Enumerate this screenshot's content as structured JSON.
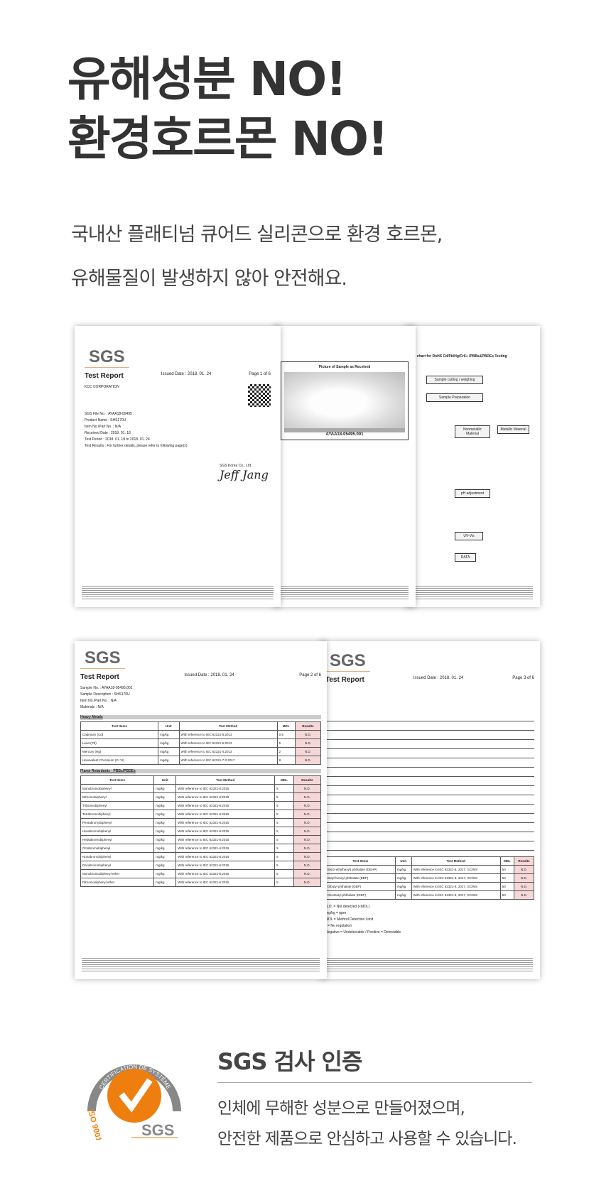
{
  "headline": {
    "line1": "유해성분 NO!",
    "line2": "환경호르몬 NO!"
  },
  "intro": {
    "line1": "국내산 플래티넘 큐어드 실리콘으로 환경 호르몬,",
    "line2": "유해물질이 발생하지 않아 안전해요."
  },
  "doc1": {
    "logo": "SGS",
    "title": "Test Report",
    "issued": "Issued Date : 2018. 01. 24",
    "page": "Page 1 of 6",
    "company": "KCC CORPORATION",
    "fields": [
      "SGS File No. : AYAA18-05495",
      "Product Name : SHS170U",
      "Item No./Part No. : N/A",
      "Received Date : 2018. 01. 18",
      "Test Period : 2018. 01. 18 to 2018. 01. 24",
      "Test Results : For further details, please refer to following page(s)"
    ],
    "signer": "SGS Korea Co., Ltd.",
    "signature": "Jeff Jang"
  },
  "doc2": {
    "picture_label": "Picture of Sample as Received",
    "sample_id": "AYAA18-05495.001"
  },
  "doc3": {
    "title": "Flow chart for RoHS Cd/Pb/Hg/Cr6+ /PBBs&PBDEs Testing",
    "boxes": [
      "Sample cutting / weighing",
      "Sample Preparation",
      "Nonmetallic Material",
      "Metallic Material",
      "pH adjustment",
      "UV-Vis",
      "DATA"
    ]
  },
  "doc4": {
    "logo": "SGS",
    "title": "Test Report",
    "issued": "Issued Date : 2018. 01. 24",
    "page": "Page 2 of 6",
    "fields": [
      "Sample No. : AYAA18-05495.001",
      "Sample Description : SHS170U",
      "Item No./Part No. : N/A",
      "Materials : N/A"
    ],
    "section1": "Heavy Metals",
    "columns": [
      "Test Items",
      "Unit",
      "Test Method",
      "MDL",
      "Results"
    ],
    "rows1": [
      [
        "Cadmium (Cd)",
        "mg/kg",
        "With reference to IEC 62321-5:2013",
        "0.5",
        "N.D."
      ],
      [
        "Lead (Pb)",
        "mg/kg",
        "With reference to IEC 62321-5:2013",
        "5",
        "N.D."
      ],
      [
        "Mercury (Hg)",
        "mg/kg",
        "With reference to IEC 62321-4:2013",
        "2",
        "N.D."
      ],
      [
        "Hexavalent Chromium (Cr VI)",
        "mg/kg",
        "With reference to IEC 62321-7-2:2017",
        "8",
        "N.D."
      ]
    ],
    "section2": "Flame Retardants - PBBs/PBDEs",
    "rows2": [
      [
        "Monobromobiphenyl",
        "mg/kg",
        "With reference to IEC 62321-6:2015",
        "5",
        "N.D."
      ],
      [
        "Dibromobiphenyl",
        "mg/kg",
        "With reference to IEC 62321-6:2015",
        "5",
        "N.D."
      ],
      [
        "Tribromobiphenyl",
        "mg/kg",
        "With reference to IEC 62321-6:2015",
        "5",
        "N.D."
      ],
      [
        "Tetrabromobiphenyl",
        "mg/kg",
        "With reference to IEC 62321-6:2015",
        "5",
        "N.D."
      ],
      [
        "Pentabromobiphenyl",
        "mg/kg",
        "With reference to IEC 62321-6:2015",
        "5",
        "N.D."
      ],
      [
        "Hexabromobiphenyl",
        "mg/kg",
        "With reference to IEC 62321-6:2015",
        "5",
        "N.D."
      ],
      [
        "Heptabromobiphenyl",
        "mg/kg",
        "With reference to IEC 62321-6:2015",
        "5",
        "N.D."
      ],
      [
        "Octabromobiphenyl",
        "mg/kg",
        "With reference to IEC 62321-6:2015",
        "5",
        "N.D."
      ],
      [
        "Nonabromobiphenyl",
        "mg/kg",
        "With reference to IEC 62321-6:2015",
        "5",
        "N.D."
      ],
      [
        "Decabromobiphenyl",
        "mg/kg",
        "With reference to IEC 62321-6:2015",
        "5",
        "N.D."
      ],
      [
        "Monobromodiphenyl ether",
        "mg/kg",
        "With reference to IEC 62321-6:2015",
        "5",
        "N.D."
      ],
      [
        "Dibromodiphenyl ether",
        "mg/kg",
        "With reference to IEC 62321-6:2015",
        "5",
        "N.D."
      ]
    ]
  },
  "doc5": {
    "logo": "SGS",
    "title": "Test Report",
    "issued": "Issued Date : 2018. 01. 24",
    "page": "Page 3 of 6",
    "rows": [
      [
        "Bis(2-ethylhexyl) phthalate (DEHP)",
        "mg/kg",
        "With reference to IEC 62321-8, 2017, GC/MS",
        "50",
        "N.D."
      ],
      [
        "Butyl benzyl phthalate (BBP)",
        "mg/kg",
        "With reference to IEC 62321-8, 2017, GC/MS",
        "50",
        "N.D."
      ],
      [
        "Dibutyl phthalate (DBP)",
        "mg/kg",
        "With reference to IEC 62321-8, 2017, GC/MS",
        "50",
        "N.D."
      ],
      [
        "Diisobutyl phthalate (DIBP)",
        "mg/kg",
        "With reference to IEC 62321-8, 2017, GC/MS",
        "50",
        "N.D."
      ]
    ],
    "notes": [
      "N.D. = Not detected (<MDL)",
      "mg/kg = ppm",
      "MDL = Method Detection Limit",
      "- = No regulation",
      "Negative = Undetectable / Positive = Detectable"
    ]
  },
  "cert": {
    "heading": "SGS 검사 인증",
    "line1": "인체에 무해한 성분으로 만들어졌으며,",
    "line2": "안전한 제품으로 안심하고 사용할 수 있습니다.",
    "logo_arc": "CERTIFICATION DE SYSTÈME",
    "logo_iso": "ISO 9001",
    "logo_brand": "SGS",
    "orange": "#ee7f0f",
    "gray": "#888888"
  }
}
